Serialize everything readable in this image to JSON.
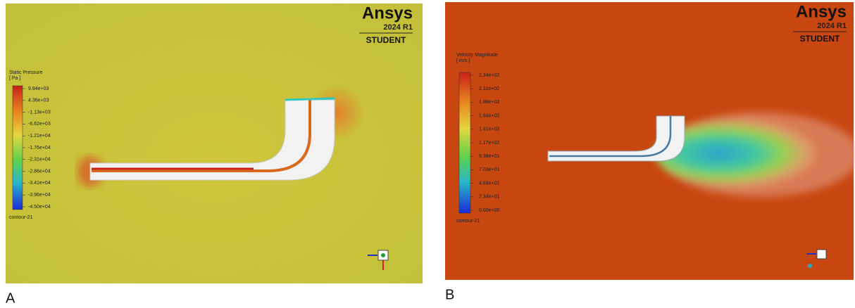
{
  "panels": [
    {
      "label": "A",
      "logo": {
        "brand": "Ansys",
        "version": "2024 R1",
        "edition": "STUDENT"
      },
      "legend": {
        "title": "Static Pressure",
        "unit": "[ Pa ]",
        "ticks": [
          "9.84e+03",
          "4.36e+03",
          "-1.13e+03",
          "-6.62e+03",
          "-1.21e+04",
          "-1.76e+04",
          "-2.31e+04",
          "-2.86e+04",
          "-3.41e+04",
          "-3.96e+04",
          "-4.50e+04"
        ],
        "footer": "contour-21"
      }
    },
    {
      "label": "B",
      "logo": {
        "brand": "Ansys",
        "version": "2024 R1",
        "edition": "STUDENT"
      },
      "legend": {
        "title": "Velocity Magnitude",
        "unit": "[ m/s ]",
        "ticks": [
          "2.34e+02",
          "2.11e+02",
          "1.88e+02",
          "1.64e+02",
          "1.41e+02",
          "1.17e+02",
          "9.38e+01",
          "7.03e+01",
          "4.69e+01",
          "2.34e+01",
          "0.00e+00"
        ],
        "footer": "contour-21"
      }
    }
  ]
}
